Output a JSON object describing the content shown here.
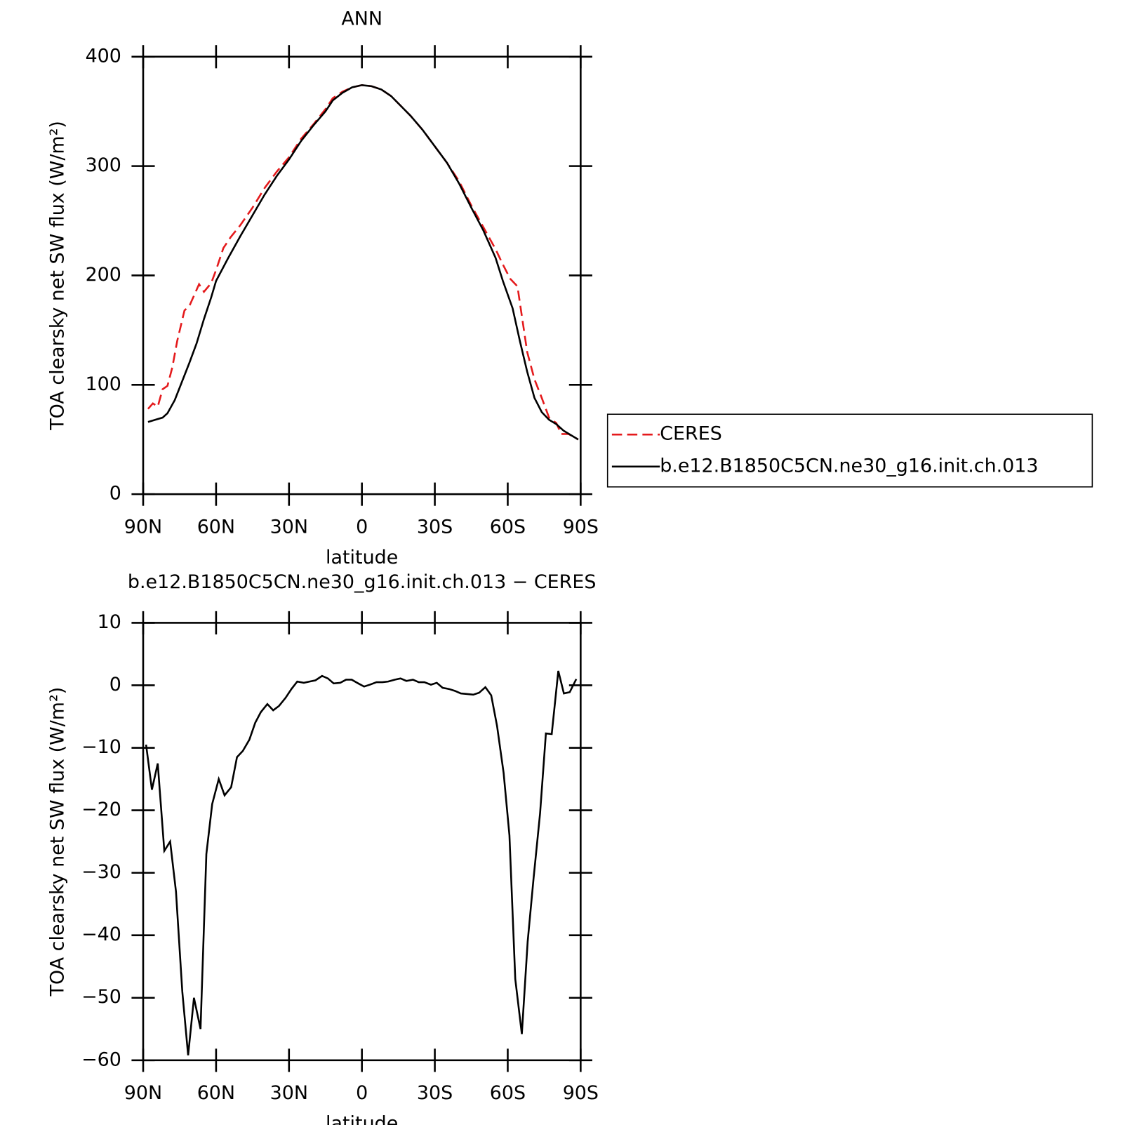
{
  "chart_data": [
    {
      "type": "line",
      "title": "ANN",
      "x_label": "latitude",
      "y_label": "TOA clearsky net SW flux (W/m²)",
      "xlim": [
        90,
        -90
      ],
      "xticks": [
        {
          "value": 90,
          "label": "90N"
        },
        {
          "value": 60,
          "label": "60N"
        },
        {
          "value": 30,
          "label": "30N"
        },
        0,
        {
          "value": -30,
          "label": "30S"
        },
        {
          "value": -60,
          "label": "60S"
        },
        {
          "value": -90,
          "label": "90S"
        }
      ],
      "ylim": [
        0,
        400
      ],
      "yticks": [
        0,
        100,
        200,
        300,
        400
      ],
      "legend": "right",
      "series": [
        {
          "name": "CERES",
          "color": "#e41a1c",
          "line_style": "dashed",
          "x": [
            88,
            86,
            84,
            82,
            80,
            78,
            76,
            73,
            71,
            68,
            67,
            65,
            62,
            60,
            57,
            54,
            50,
            45,
            40,
            35,
            30,
            25,
            20,
            15,
            12,
            8,
            4,
            0,
            -4,
            -8,
            -12,
            -16,
            -20,
            -25,
            -30,
            -35,
            -40,
            -45,
            -50,
            -55,
            -58,
            -61,
            -64,
            -66,
            -68,
            -71,
            -74,
            -77,
            -80,
            -82,
            -85,
            -89
          ],
          "values": [
            78,
            83,
            80,
            96,
            99,
            116,
            140,
            168,
            172,
            187,
            192,
            185,
            193,
            205,
            225,
            235,
            246,
            262,
            280,
            295,
            308,
            325,
            338,
            352,
            362,
            368,
            372,
            374,
            373,
            370,
            364,
            355,
            346,
            333,
            318,
            303,
            286,
            264,
            244,
            224,
            210,
            197,
            190,
            160,
            130,
            105,
            88,
            70,
            65,
            55,
            55,
            50
          ]
        },
        {
          "name": "b.e12.B1850C5CN.ne30_g16.init.ch.013",
          "color": "#000000",
          "line_style": "solid",
          "x": [
            88,
            85,
            82,
            80,
            77,
            74,
            71,
            68,
            65,
            62,
            60,
            55,
            50,
            45,
            40,
            35,
            30,
            25,
            20,
            15,
            12,
            8,
            4,
            0,
            -4,
            -8,
            -12,
            -16,
            -20,
            -25,
            -30,
            -35,
            -40,
            -45,
            -50,
            -55,
            -58,
            -62,
            -65,
            -68,
            -71,
            -74,
            -77,
            -80,
            -83,
            -86,
            -89
          ],
          "values": [
            66,
            68,
            70,
            74,
            86,
            103,
            120,
            138,
            160,
            180,
            195,
            216,
            236,
            255,
            274,
            291,
            306,
            323,
            337,
            350,
            360,
            367,
            372,
            374,
            373,
            370,
            364,
            355,
            346,
            333,
            318,
            303,
            284,
            262,
            241,
            216,
            195,
            170,
            140,
            112,
            88,
            75,
            68,
            64,
            58,
            54,
            50
          ]
        }
      ]
    },
    {
      "type": "line",
      "title": "b.e12.B1850C5CN.ne30_g16.init.ch.013 − CERES",
      "x_label": "latitude",
      "y_label": "TOA clearsky net SW flux (W/m²)",
      "xlim": [
        90,
        -90
      ],
      "xticks": [
        {
          "value": 90,
          "label": "90N"
        },
        {
          "value": 60,
          "label": "60N"
        },
        {
          "value": 30,
          "label": "30N"
        },
        0,
        {
          "value": -30,
          "label": "30S"
        },
        {
          "value": -60,
          "label": "60S"
        },
        {
          "value": -90,
          "label": "90S"
        }
      ],
      "ylim": [
        -60,
        10
      ],
      "yticks": [
        {
          "value": -60,
          "label": "−60"
        },
        {
          "value": -50,
          "label": "−50"
        },
        {
          "value": -40,
          "label": "−40"
        },
        {
          "value": -30,
          "label": "−30"
        },
        {
          "value": -20,
          "label": "−20"
        },
        {
          "value": -10,
          "label": "−10"
        },
        0,
        10
      ],
      "color": "#000000",
      "line_style": "solid",
      "x": [
        88.8,
        86.4,
        84,
        81.3,
        78.9,
        76.5,
        73.9,
        71.5,
        69.1,
        66.4,
        64,
        61.6,
        58.9,
        56.5,
        53.8,
        51.4,
        49,
        46.3,
        43.9,
        41.6,
        38.9,
        36.5,
        34.1,
        31.4,
        29,
        26.6,
        23.9,
        21.5,
        19.1,
        16.4,
        14,
        11.6,
        8.9,
        6.5,
        4.2,
        1.5,
        -0.9,
        -3.3,
        -6,
        -8.4,
        -10.8,
        -13.5,
        -15.9,
        -18.3,
        -21,
        -23.4,
        -25.7,
        -28.4,
        -30.8,
        -33.2,
        -35.9,
        -38.3,
        -40.7,
        -43.4,
        -45.8,
        -48.2,
        -50.8,
        -53.2,
        -55.6,
        -58.3,
        -60.7,
        -63.1,
        -65.8,
        -68.2,
        -70.6,
        -73.3,
        -75.7,
        -78.1,
        -80.8,
        -83.1,
        -85.5,
        -88.2
      ],
      "values": [
        -9.5,
        -16.7,
        -12.5,
        -26.5,
        -25,
        -33,
        -49,
        -59.2,
        -50,
        -55,
        -27,
        -19,
        -15,
        -17.6,
        -16.3,
        -11.5,
        -10.5,
        -8.7,
        -6,
        -4.3,
        -3,
        -4,
        -3.3,
        -2,
        -0.6,
        0.6,
        0.4,
        0.6,
        0.8,
        1.5,
        1.1,
        0.3,
        0.4,
        0.9,
        0.9,
        0.3,
        -0.2,
        0.1,
        0.5,
        0.5,
        0.6,
        0.9,
        1.1,
        0.7,
        0.9,
        0.5,
        0.5,
        0.1,
        0.4,
        -0.4,
        -0.6,
        -0.9,
        -1.3,
        -1.4,
        -1.5,
        -1.2,
        -0.3,
        -1.6,
        -6.5,
        -14,
        -24,
        -47,
        -55.8,
        -41,
        -31,
        -20.5,
        -7.7,
        -7.8,
        2.3,
        -1.3,
        -1.1,
        1
      ]
    }
  ]
}
